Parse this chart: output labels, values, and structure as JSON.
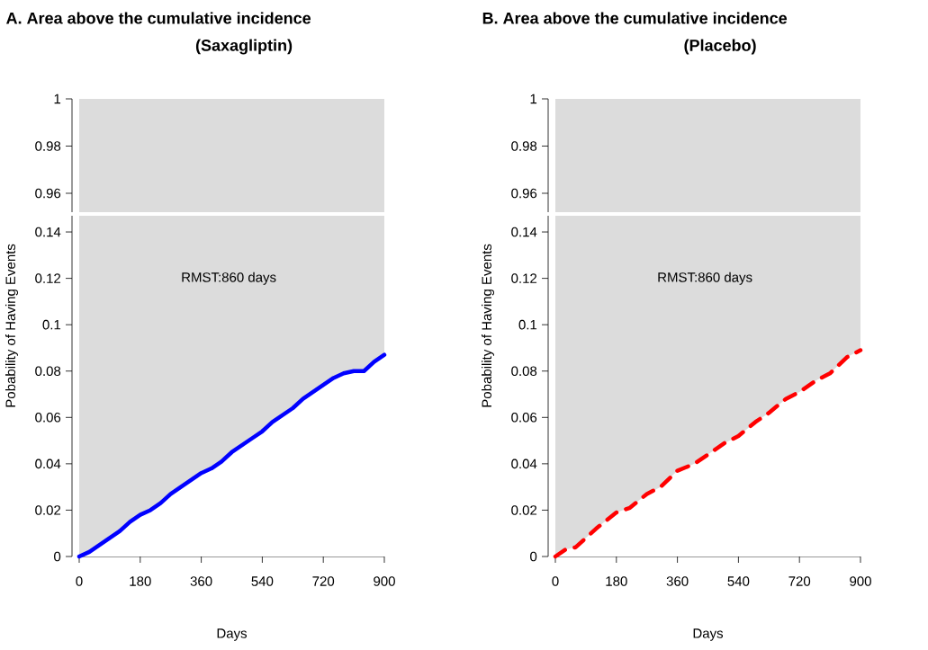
{
  "chart_data": [
    {
      "type": "line",
      "title": "A. Area above the cumulative incidence",
      "subtitle": "(Saxagliptin)",
      "bands": [
        {
          "axis": "y",
          "from": 0.952,
          "to": 1,
          "color": "#dcdcdc"
        }
      ],
      "xlim": [
        0,
        900
      ],
      "ylim": [
        0.952,
        1
      ],
      "yticks": [
        0.96,
        0.98,
        1
      ],
      "tick_labels": "y"
    },
    {
      "type": "line",
      "xlabel": "Days",
      "ylabel": "Pobability of Having Events",
      "x": [
        0,
        30,
        60,
        90,
        120,
        150,
        180,
        210,
        240,
        270,
        300,
        330,
        360,
        390,
        420,
        450,
        480,
        510,
        540,
        570,
        600,
        630,
        660,
        690,
        720,
        750,
        780,
        810,
        840,
        870,
        900
      ],
      "series": [
        {
          "color": "#0000ff",
          "values": [
            0,
            0.002,
            0.005,
            0.008,
            0.011,
            0.015,
            0.018,
            0.02,
            0.023,
            0.027,
            0.03,
            0.033,
            0.036,
            0.038,
            0.041,
            0.045,
            0.048,
            0.051,
            0.054,
            0.058,
            0.061,
            0.064,
            0.068,
            0.071,
            0.074,
            0.077,
            0.079,
            0.08,
            0.08,
            0.084,
            0.087
          ]
        }
      ],
      "bands": [
        {
          "axis": "y",
          "from": 0,
          "to": 0.147,
          "color": "#dcdcdc"
        }
      ],
      "xlim": [
        0,
        900
      ],
      "ylim": [
        0,
        0.147
      ],
      "xticks": [
        0,
        180,
        360,
        540,
        720,
        900
      ],
      "yticks": [
        0,
        0.02,
        0.04,
        0.06,
        0.08,
        0.1,
        0.12,
        0.14
      ],
      "annotations": [
        "RMST:860 days"
      ]
    },
    {
      "type": "line",
      "title": "B. Area above the cumulative incidence",
      "subtitle": "(Placebo)",
      "bands": [
        {
          "axis": "y",
          "from": 0.952,
          "to": 1,
          "color": "#dcdcdc"
        }
      ],
      "xlim": [
        0,
        900
      ],
      "ylim": [
        0.952,
        1
      ],
      "yticks": [
        0.96,
        0.98,
        1
      ],
      "tick_labels": "y"
    },
    {
      "type": "line",
      "xlabel": "Days",
      "ylabel": "Pobability of Having Events",
      "line_style": "dashed",
      "x": [
        0,
        30,
        60,
        90,
        120,
        180,
        220,
        270,
        310,
        360,
        410,
        450,
        500,
        540,
        590,
        630,
        680,
        720,
        770,
        810,
        860,
        900
      ],
      "series": [
        {
          "color": "#ff0000",
          "values": [
            0,
            0.003,
            0.004,
            0.008,
            0.012,
            0.019,
            0.021,
            0.027,
            0.03,
            0.037,
            0.04,
            0.044,
            0.049,
            0.052,
            0.058,
            0.062,
            0.068,
            0.071,
            0.076,
            0.079,
            0.086,
            0.089
          ]
        }
      ],
      "bands": [
        {
          "axis": "y",
          "from": 0,
          "to": 0.147,
          "color": "#dcdcdc"
        }
      ],
      "xlim": [
        0,
        900
      ],
      "ylim": [
        0,
        0.147
      ],
      "xticks": [
        0,
        180,
        360,
        540,
        720,
        900
      ],
      "yticks": [
        0,
        0.02,
        0.04,
        0.06,
        0.08,
        0.1,
        0.12,
        0.14
      ],
      "annotations": [
        "RMST:860 days"
      ]
    }
  ]
}
